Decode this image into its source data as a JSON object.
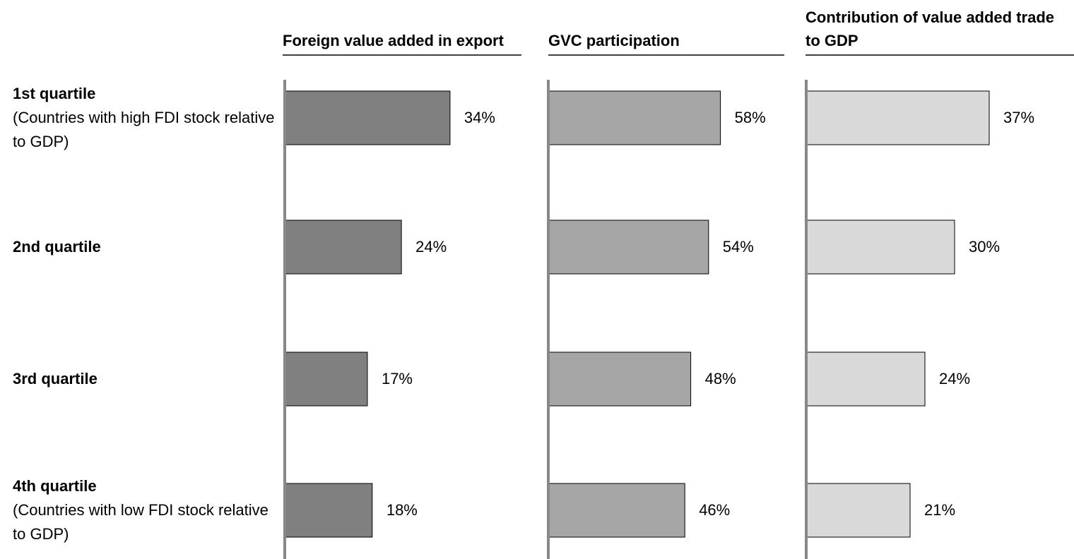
{
  "chart_data": [
    {
      "type": "bar",
      "orientation": "horizontal",
      "title": "Foreign value added in export",
      "categories": [
        "1st quartile",
        "2nd quartile",
        "3rd quartile",
        "4th quartile"
      ],
      "category_notes": [
        "(Countries with high FDI stock relative to GDP)",
        null,
        null,
        "(Countries with low FDI stock relative to GDP)"
      ],
      "values": [
        34,
        24,
        17,
        18
      ],
      "value_labels": [
        "34%",
        "24%",
        "17%",
        "18%"
      ],
      "color": "#808080",
      "xlim": [
        0,
        50
      ]
    },
    {
      "type": "bar",
      "orientation": "horizontal",
      "title": "GVC participation",
      "values": [
        58,
        54,
        48,
        46
      ],
      "value_labels": [
        "58%",
        "54%",
        "48%",
        "46%"
      ],
      "color": "#a6a6a6",
      "xlim": [
        0,
        80
      ]
    },
    {
      "type": "bar",
      "orientation": "horizontal",
      "title": "Contribution of value added trade to GDP",
      "values": [
        37,
        30,
        24,
        21
      ],
      "value_labels": [
        "37%",
        "30%",
        "24%",
        "21%"
      ],
      "color": "#d9d9d9",
      "xlim": [
        0,
        50
      ]
    }
  ]
}
